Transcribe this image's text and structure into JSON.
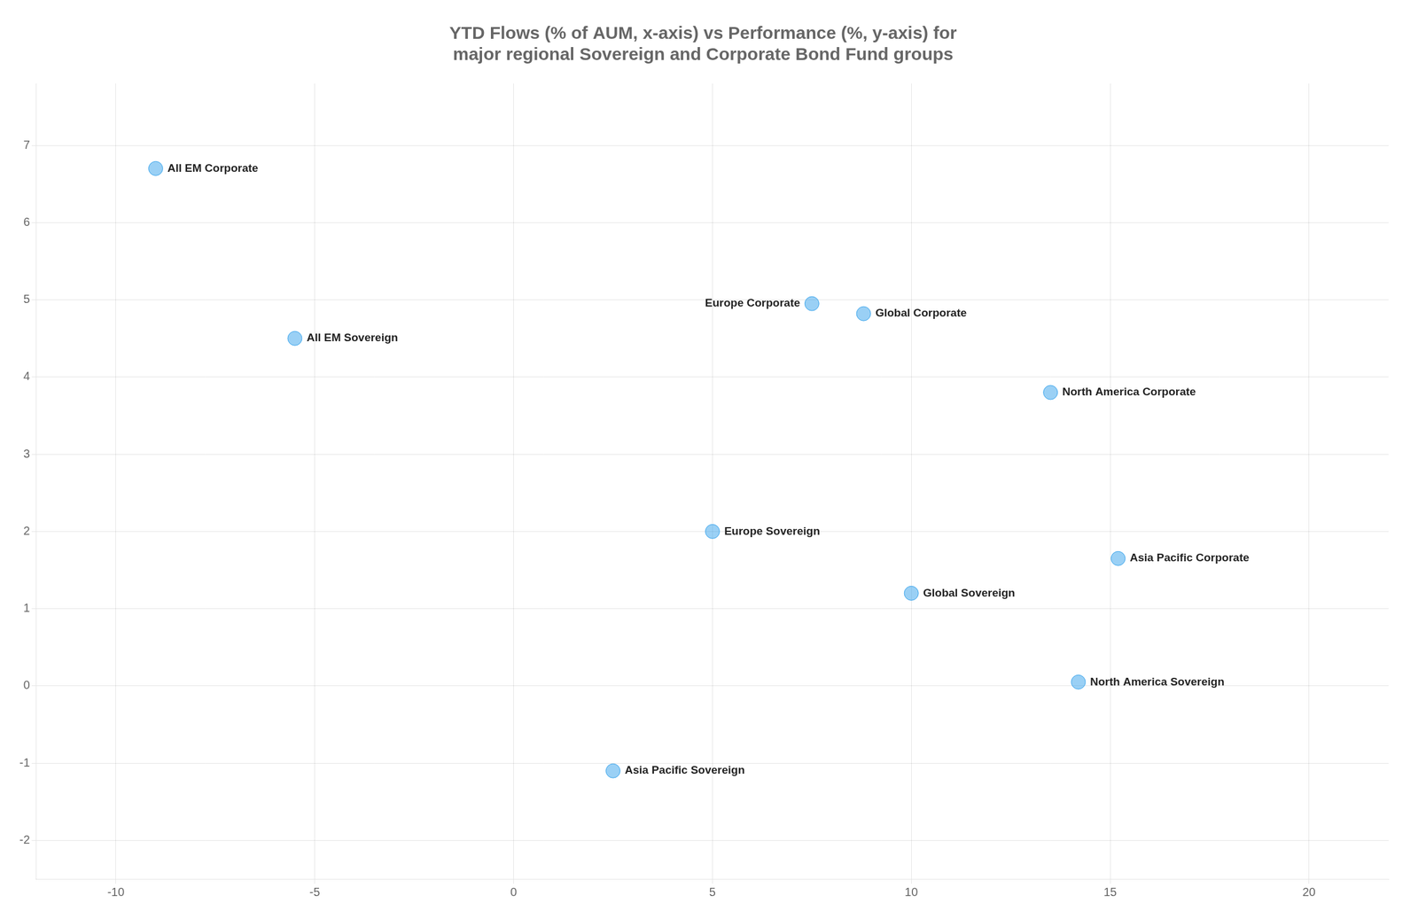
{
  "chart_data": {
    "type": "scatter",
    "title": "YTD Flows (% of AUM, x-axis) vs Performance (%, y-axis) for\nmajor regional Sovereign and Corporate Bond Fund groups",
    "x": [
      -9.0,
      -5.5,
      7.5,
      8.8,
      13.5,
      5.0,
      15.2,
      10.0,
      14.2,
      2.5
    ],
    "values": [
      6.7,
      4.5,
      4.95,
      4.82,
      3.8,
      2.0,
      1.65,
      1.2,
      0.05,
      -1.1
    ],
    "point_labels": [
      "All EM Corporate",
      "All EM Sovereign",
      "Europe Corporate",
      "Global Corporate",
      "North America Corporate",
      "Europe Sovereign",
      "Asia Pacific Corporate",
      "Global Sovereign",
      "North America Sovereign",
      "Asia Pacific Sovereign"
    ],
    "xlim": [
      -12,
      22
    ],
    "ylim": [
      -2.5,
      7.8
    ],
    "xticks": [
      -10,
      -5,
      0,
      5,
      10,
      15,
      20
    ],
    "yticks": [
      -2,
      -1,
      0,
      1,
      2,
      3,
      4,
      5,
      6,
      7
    ],
    "grid": true
  }
}
